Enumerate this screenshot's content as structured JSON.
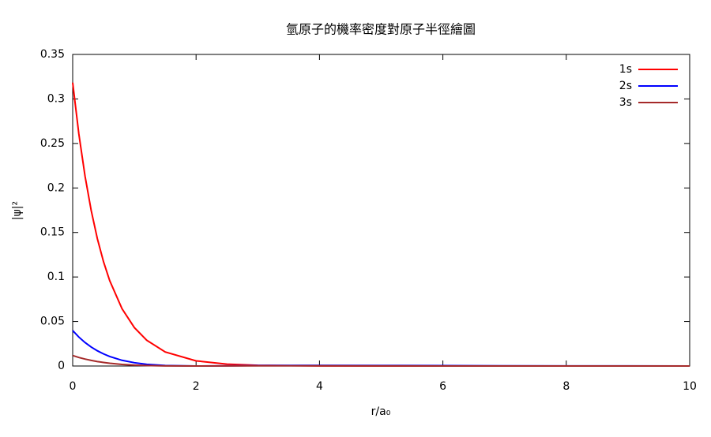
{
  "chart_data": {
    "type": "line",
    "title": "氫原子的機率密度對原子半徑繪圖",
    "x_label": "r/a₀",
    "y_label": "|ψ|²",
    "x": [
      0,
      0.1,
      0.2,
      0.3,
      0.4,
      0.5,
      0.6,
      0.8,
      1,
      1.2,
      1.5,
      2,
      2.5,
      3,
      4,
      5,
      6,
      7,
      8,
      9,
      10
    ],
    "series": [
      {
        "name": "1s",
        "color": "#ff0000",
        "values": [
          0.3183,
          0.2606,
          0.2134,
          0.1747,
          0.143,
          0.1171,
          0.0959,
          0.0643,
          0.0431,
          0.0289,
          0.0158,
          0.0058,
          0.0021,
          0.0008,
          0.0001,
          0,
          0,
          0,
          0,
          0,
          0
        ]
      },
      {
        "name": "2s",
        "color": "#0000ff",
        "values": [
          0.0398,
          0.0325,
          0.0264,
          0.0213,
          0.0171,
          0.0136,
          0.0107,
          0.0064,
          0.0037,
          0.0019,
          0.0006,
          0,
          0.0002,
          0.0005,
          0.0007,
          0.0006,
          0.0004,
          0.0002,
          0.0001,
          0.0001,
          0
        ]
      },
      {
        "name": "3s",
        "color": "#a52a2a",
        "values": [
          0.0118,
          0.0096,
          0.0078,
          0.0063,
          0.005,
          0.004,
          0.0031,
          0.0018,
          0.001,
          0.0005,
          0.0001,
          0,
          0.0001,
          0.0002,
          0.0002,
          0.0001,
          0,
          0,
          0,
          0,
          0
        ]
      }
    ],
    "xlim": [
      0,
      10
    ],
    "xticks": [
      0,
      2,
      4,
      6,
      8,
      10
    ],
    "ylim": [
      0,
      0.35
    ],
    "yticks": [
      0,
      0.05,
      0.1,
      0.15,
      0.2,
      0.25,
      0.3,
      0.35
    ],
    "grid": false,
    "legend": "top-right"
  }
}
